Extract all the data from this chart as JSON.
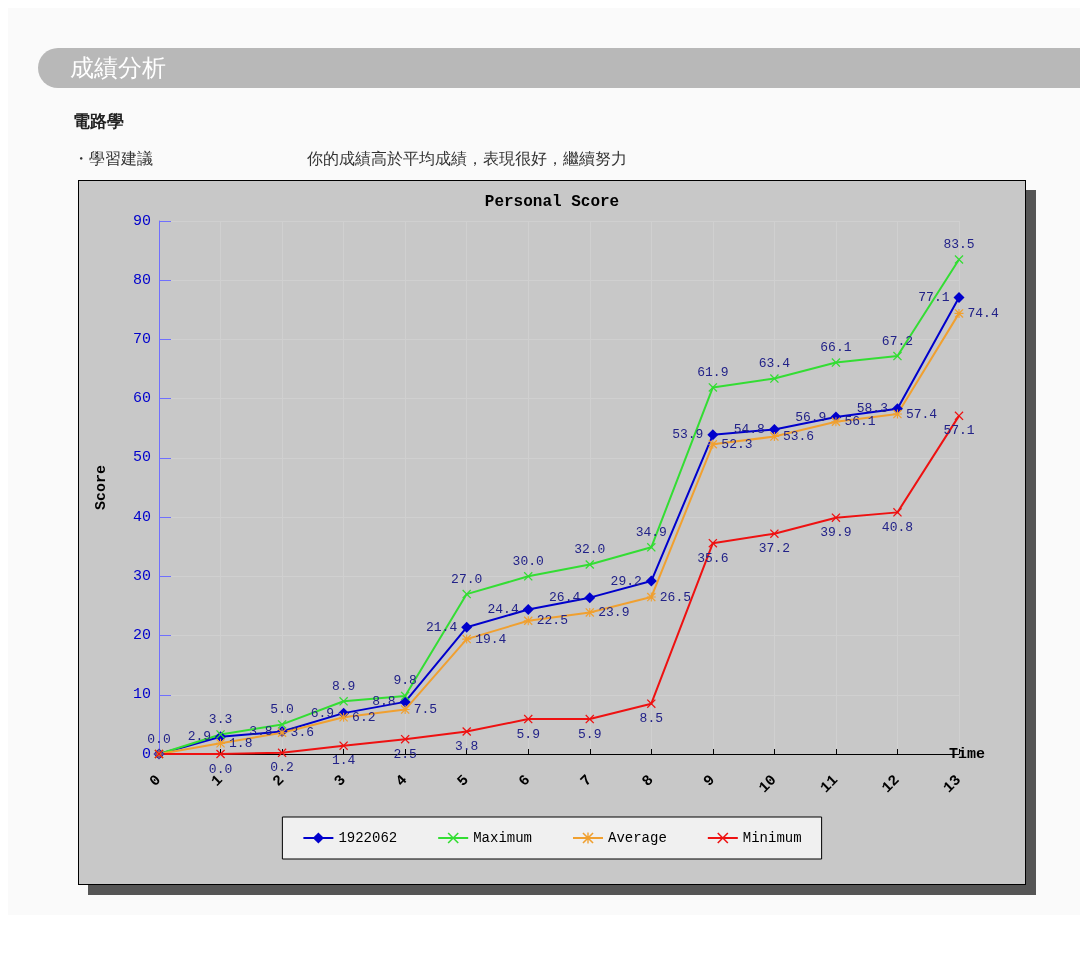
{
  "chart_data": {
    "type": "line",
    "title": "Personal Score",
    "xlabel": "Time",
    "ylabel": "Score",
    "annotations": [
      "成績分析",
      "電路學",
      "・學習建議",
      "你的成績高於平均成績，表現很好，繼續努力"
    ],
    "x": [
      0,
      1,
      2,
      3,
      4,
      5,
      6,
      7,
      8,
      9,
      10,
      11,
      12,
      13
    ],
    "xlim": [
      0,
      13
    ],
    "xticks": [
      0,
      1,
      2,
      3,
      4,
      5,
      6,
      7,
      8,
      9,
      10,
      11,
      12,
      13
    ],
    "ylim": [
      0,
      90
    ],
    "yticks": [
      0,
      10,
      20,
      30,
      40,
      50,
      60,
      70,
      80,
      90
    ],
    "grid": true,
    "legend": "bottom",
    "series": [
      {
        "name": "1922062",
        "color": "#0000cc",
        "marker": "diamond",
        "values": [
          0,
          2.9,
          3.8,
          6.9,
          8.8,
          21.4,
          24.4,
          26.4,
          29.2,
          53.9,
          54.8,
          56.9,
          58.3,
          77.1
        ],
        "value_labels": [
          null,
          "2.9",
          "3.8",
          "6.9",
          "8.8",
          "21.4",
          "24.4",
          "26.4",
          "29.2",
          "53.9",
          "54.8",
          "56.9",
          "58.3",
          "77.1"
        ]
      },
      {
        "name": "Maximum",
        "color": "#33dd33",
        "marker": "cross",
        "values": [
          0,
          3.3,
          5.0,
          8.9,
          9.8,
          27.0,
          30.0,
          32.0,
          34.9,
          61.9,
          63.4,
          66.1,
          67.2,
          83.5
        ],
        "value_labels": [
          "0.0",
          "3.3",
          "5.0",
          "8.9",
          "9.8",
          "27.0",
          "30.0",
          "32.0",
          "34.9",
          "61.9",
          "63.4",
          "66.1",
          "67.2",
          "83.5"
        ]
      },
      {
        "name": "Average",
        "color": "#f0a030",
        "marker": "star",
        "values": [
          0,
          1.8,
          3.6,
          6.2,
          7.5,
          19.4,
          22.5,
          23.9,
          26.5,
          52.3,
          53.6,
          56.1,
          57.4,
          74.4
        ],
        "value_labels": [
          null,
          "1.8",
          "3.6",
          "6.2",
          "7.5",
          "19.4",
          "22.5",
          "23.9",
          "26.5",
          "52.3",
          "53.6",
          "56.1",
          "57.4",
          "74.4"
        ]
      },
      {
        "name": "Minimum",
        "color": "#ee1111",
        "marker": "cross",
        "values": [
          0,
          0.0,
          0.2,
          1.4,
          2.5,
          3.8,
          5.9,
          5.9,
          8.5,
          35.6,
          37.2,
          39.9,
          40.8,
          57.1
        ],
        "value_labels": [
          null,
          "0.0",
          "0.2",
          "1.4",
          "2.5",
          "3.8",
          "5.9",
          "5.9",
          "8.5",
          "35.6",
          "37.2",
          "39.9",
          "40.8",
          "57.1"
        ]
      }
    ]
  }
}
